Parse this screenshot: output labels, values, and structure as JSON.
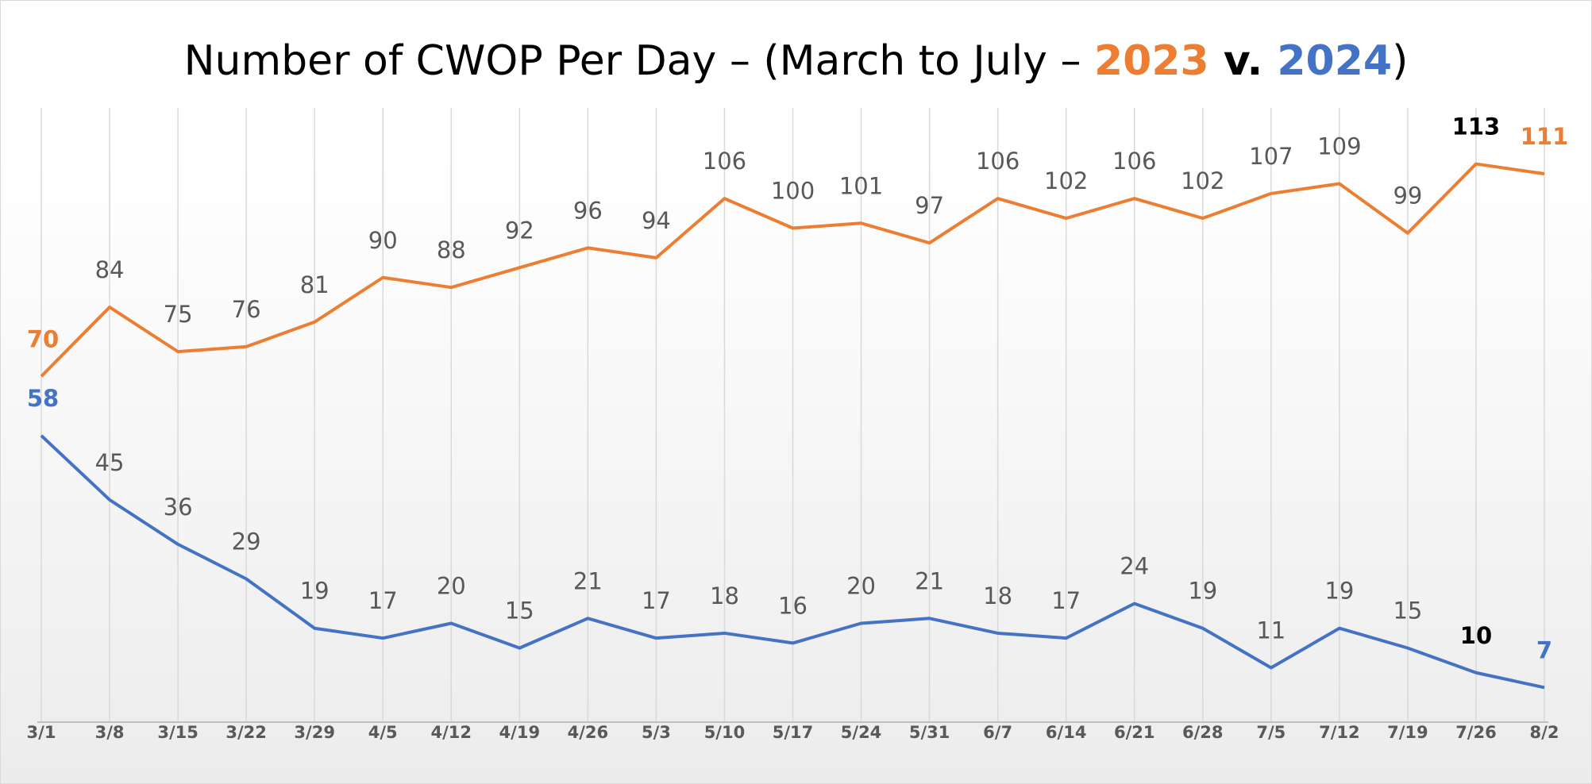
{
  "chart_data": {
    "type": "line",
    "title_parts": [
      "Number of CWOP Per Day – (March to July – ",
      " v. ",
      ")"
    ],
    "categories": [
      "3/1",
      "3/8",
      "3/15",
      "3/22",
      "3/29",
      "4/5",
      "4/12",
      "4/19",
      "4/26",
      "5/3",
      "5/10",
      "5/17",
      "5/24",
      "5/31",
      "6/7",
      "6/14",
      "6/21",
      "6/28",
      "7/5",
      "7/12",
      "7/19",
      "7/26",
      "8/2"
    ],
    "series": [
      {
        "name": "2023",
        "color": "#ed7d31",
        "values": [
          70,
          84,
          75,
          76,
          81,
          90,
          88,
          92,
          96,
          94,
          106,
          100,
          101,
          97,
          106,
          102,
          106,
          102,
          107,
          109,
          99,
          113,
          111
        ],
        "label_colors": [
          "#ed7d31",
          "#595959",
          "#595959",
          "#595959",
          "#595959",
          "#595959",
          "#595959",
          "#595959",
          "#595959",
          "#595959",
          "#595959",
          "#595959",
          "#595959",
          "#595959",
          "#595959",
          "#595959",
          "#595959",
          "#595959",
          "#595959",
          "#595959",
          "#595959",
          "#000000",
          "#ed7d31"
        ]
      },
      {
        "name": "2024",
        "color": "#4472c4",
        "values": [
          58,
          45,
          36,
          29,
          19,
          17,
          20,
          15,
          21,
          17,
          18,
          16,
          20,
          21,
          18,
          17,
          24,
          19,
          11,
          19,
          15,
          10,
          7
        ],
        "label_colors": [
          "#4472c4",
          "#595959",
          "#595959",
          "#595959",
          "#595959",
          "#595959",
          "#595959",
          "#595959",
          "#595959",
          "#595959",
          "#595959",
          "#595959",
          "#595959",
          "#595959",
          "#595959",
          "#595959",
          "#595959",
          "#595959",
          "#595959",
          "#595959",
          "#595959",
          "#000000",
          "#4472c4"
        ]
      }
    ],
    "ylim": [
      0,
      120
    ],
    "grid": true
  }
}
